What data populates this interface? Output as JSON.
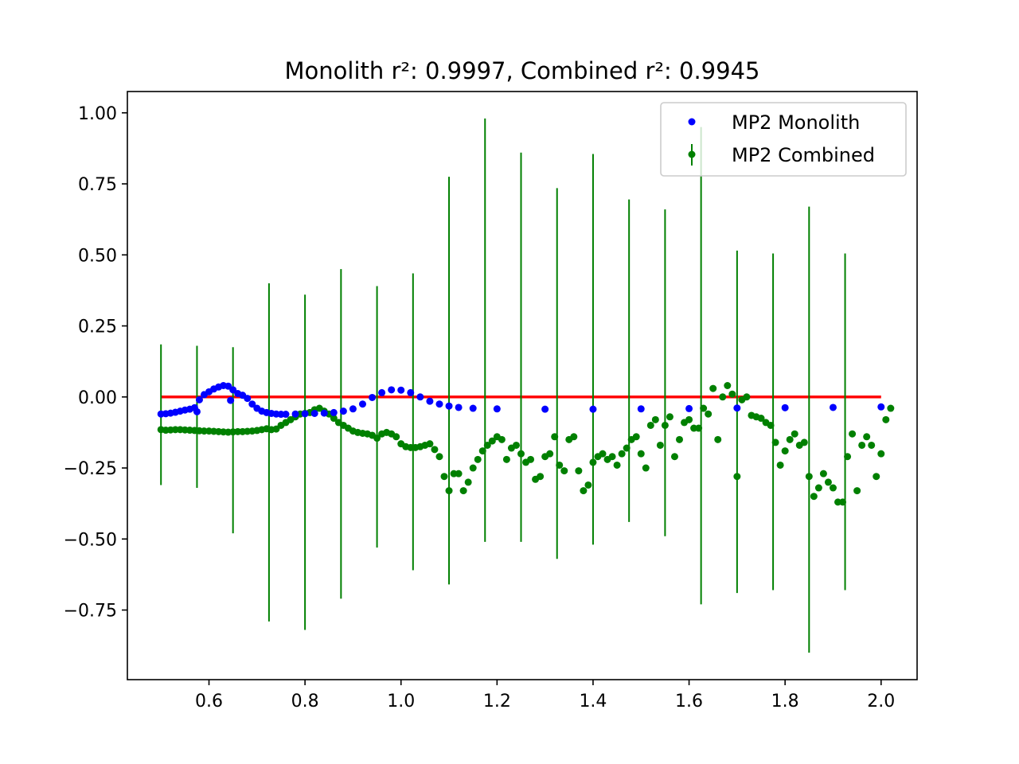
{
  "chart_data": {
    "type": "scatter",
    "title": "Monolith r²: 0.9997, Combined r²: 0.9945",
    "xlabel": "",
    "ylabel": "",
    "xlim": [
      0.43,
      2.075
    ],
    "ylim": [
      -0.995,
      1.075
    ],
    "xticks": [
      0.6,
      0.8,
      1.0,
      1.2,
      1.4,
      1.6,
      1.8,
      2.0
    ],
    "xtick_labels": [
      "0.6",
      "0.8",
      "1.0",
      "1.2",
      "1.4",
      "1.6",
      "1.8",
      "2.0"
    ],
    "yticks": [
      1.0,
      0.75,
      0.5,
      0.25,
      0.0,
      -0.25,
      -0.5,
      -0.75
    ],
    "ytick_labels": [
      "1.00",
      "0.75",
      "0.50",
      "0.25",
      "0.00",
      "−0.25",
      "−0.50",
      "−0.75"
    ],
    "grid": false,
    "legend_position": "top-right",
    "reference_line": {
      "x": [
        0.5,
        2.0
      ],
      "y": [
        0.0,
        0.0
      ],
      "color": "#ff0000"
    },
    "series": [
      {
        "name": "MP2 Monolith",
        "kind": "scatter",
        "color": "#0000ff",
        "points": [
          [
            0.5,
            -0.06
          ],
          [
            0.51,
            -0.059
          ],
          [
            0.52,
            -0.057
          ],
          [
            0.53,
            -0.054
          ],
          [
            0.54,
            -0.05
          ],
          [
            0.55,
            -0.046
          ],
          [
            0.56,
            -0.043
          ],
          [
            0.57,
            -0.038
          ],
          [
            0.575,
            -0.052
          ],
          [
            0.58,
            -0.01
          ],
          [
            0.59,
            0.008
          ],
          [
            0.6,
            0.018
          ],
          [
            0.61,
            0.028
          ],
          [
            0.62,
            0.035
          ],
          [
            0.63,
            0.04
          ],
          [
            0.64,
            0.038
          ],
          [
            0.645,
            -0.012
          ],
          [
            0.65,
            0.025
          ],
          [
            0.66,
            0.012
          ],
          [
            0.67,
            0.006
          ],
          [
            0.68,
            -0.005
          ],
          [
            0.69,
            -0.025
          ],
          [
            0.7,
            -0.04
          ],
          [
            0.71,
            -0.05
          ],
          [
            0.72,
            -0.055
          ],
          [
            0.73,
            -0.058
          ],
          [
            0.74,
            -0.06
          ],
          [
            0.75,
            -0.061
          ],
          [
            0.76,
            -0.061
          ],
          [
            0.78,
            -0.06
          ],
          [
            0.8,
            -0.059
          ],
          [
            0.82,
            -0.058
          ],
          [
            0.84,
            -0.057
          ],
          [
            0.86,
            -0.055
          ],
          [
            0.88,
            -0.05
          ],
          [
            0.9,
            -0.042
          ],
          [
            0.92,
            -0.025
          ],
          [
            0.94,
            -0.002
          ],
          [
            0.96,
            0.015
          ],
          [
            0.98,
            0.025
          ],
          [
            1.0,
            0.024
          ],
          [
            1.02,
            0.015
          ],
          [
            1.04,
            0.0
          ],
          [
            1.06,
            -0.015
          ],
          [
            1.08,
            -0.025
          ],
          [
            1.1,
            -0.032
          ],
          [
            1.12,
            -0.037
          ],
          [
            1.15,
            -0.04
          ],
          [
            1.2,
            -0.042
          ],
          [
            1.3,
            -0.043
          ],
          [
            1.4,
            -0.043
          ],
          [
            1.5,
            -0.042
          ],
          [
            1.6,
            -0.041
          ],
          [
            1.7,
            -0.039
          ],
          [
            1.8,
            -0.038
          ],
          [
            1.9,
            -0.037
          ],
          [
            2.0,
            -0.035
          ]
        ]
      },
      {
        "name": "MP2 Combined",
        "kind": "errorbar",
        "color": "#008000",
        "points": [
          [
            0.5,
            -0.115
          ],
          [
            0.51,
            -0.117
          ],
          [
            0.52,
            -0.116
          ],
          [
            0.53,
            -0.115
          ],
          [
            0.54,
            -0.115
          ],
          [
            0.55,
            -0.116
          ],
          [
            0.56,
            -0.117
          ],
          [
            0.57,
            -0.118
          ],
          [
            0.58,
            -0.119
          ],
          [
            0.59,
            -0.12
          ],
          [
            0.6,
            -0.12
          ],
          [
            0.61,
            -0.121
          ],
          [
            0.62,
            -0.122
          ],
          [
            0.63,
            -0.123
          ],
          [
            0.64,
            -0.124
          ],
          [
            0.65,
            -0.123
          ],
          [
            0.66,
            -0.122
          ],
          [
            0.67,
            -0.122
          ],
          [
            0.68,
            -0.121
          ],
          [
            0.69,
            -0.12
          ],
          [
            0.7,
            -0.118
          ],
          [
            0.71,
            -0.115
          ],
          [
            0.72,
            -0.112
          ],
          [
            0.73,
            -0.115
          ],
          [
            0.74,
            -0.113
          ],
          [
            0.75,
            -0.1
          ],
          [
            0.76,
            -0.09
          ],
          [
            0.77,
            -0.08
          ],
          [
            0.78,
            -0.07
          ],
          [
            0.79,
            -0.06
          ],
          [
            0.8,
            -0.058
          ],
          [
            0.81,
            -0.055
          ],
          [
            0.82,
            -0.045
          ],
          [
            0.83,
            -0.04
          ],
          [
            0.84,
            -0.05
          ],
          [
            0.85,
            -0.06
          ],
          [
            0.86,
            -0.075
          ],
          [
            0.87,
            -0.09
          ],
          [
            0.88,
            -0.1
          ],
          [
            0.89,
            -0.11
          ],
          [
            0.9,
            -0.12
          ],
          [
            0.91,
            -0.125
          ],
          [
            0.92,
            -0.128
          ],
          [
            0.93,
            -0.13
          ],
          [
            0.94,
            -0.135
          ],
          [
            0.95,
            -0.145
          ],
          [
            0.96,
            -0.13
          ],
          [
            0.97,
            -0.125
          ],
          [
            0.98,
            -0.13
          ],
          [
            0.99,
            -0.14
          ],
          [
            1.0,
            -0.165
          ],
          [
            1.01,
            -0.175
          ],
          [
            1.02,
            -0.178
          ],
          [
            1.03,
            -0.178
          ],
          [
            1.04,
            -0.175
          ],
          [
            1.05,
            -0.17
          ],
          [
            1.06,
            -0.165
          ],
          [
            1.07,
            -0.185
          ],
          [
            1.08,
            -0.21
          ],
          [
            1.09,
            -0.28
          ],
          [
            1.1,
            -0.33
          ],
          [
            1.11,
            -0.27
          ],
          [
            1.12,
            -0.27
          ],
          [
            1.13,
            -0.33
          ],
          [
            1.14,
            -0.3
          ],
          [
            1.15,
            -0.25
          ],
          [
            1.16,
            -0.22
          ],
          [
            1.17,
            -0.19
          ],
          [
            1.18,
            -0.17
          ],
          [
            1.19,
            -0.155
          ],
          [
            1.2,
            -0.14
          ],
          [
            1.21,
            -0.15
          ],
          [
            1.22,
            -0.22
          ],
          [
            1.23,
            -0.18
          ],
          [
            1.24,
            -0.17
          ],
          [
            1.25,
            -0.2
          ],
          [
            1.26,
            -0.23
          ],
          [
            1.27,
            -0.22
          ],
          [
            1.28,
            -0.29
          ],
          [
            1.29,
            -0.28
          ],
          [
            1.3,
            -0.21
          ],
          [
            1.31,
            -0.2
          ],
          [
            1.32,
            -0.14
          ],
          [
            1.33,
            -0.24
          ],
          [
            1.34,
            -0.26
          ],
          [
            1.35,
            -0.15
          ],
          [
            1.36,
            -0.14
          ],
          [
            1.37,
            -0.26
          ],
          [
            1.38,
            -0.33
          ],
          [
            1.39,
            -0.31
          ],
          [
            1.4,
            -0.23
          ],
          [
            1.41,
            -0.21
          ],
          [
            1.42,
            -0.2
          ],
          [
            1.43,
            -0.22
          ],
          [
            1.44,
            -0.21
          ],
          [
            1.45,
            -0.24
          ],
          [
            1.46,
            -0.2
          ],
          [
            1.47,
            -0.18
          ],
          [
            1.48,
            -0.15
          ],
          [
            1.49,
            -0.14
          ],
          [
            1.5,
            -0.2
          ],
          [
            1.51,
            -0.25
          ],
          [
            1.52,
            -0.1
          ],
          [
            1.53,
            -0.08
          ],
          [
            1.54,
            -0.17
          ],
          [
            1.55,
            -0.1
          ],
          [
            1.56,
            -0.07
          ],
          [
            1.57,
            -0.21
          ],
          [
            1.58,
            -0.15
          ],
          [
            1.59,
            -0.09
          ],
          [
            1.6,
            -0.08
          ],
          [
            1.61,
            -0.11
          ],
          [
            1.62,
            -0.11
          ],
          [
            1.63,
            -0.04
          ],
          [
            1.64,
            -0.06
          ],
          [
            1.65,
            0.03
          ],
          [
            1.66,
            -0.15
          ],
          [
            1.67,
            0.0
          ],
          [
            1.68,
            0.04
          ],
          [
            1.69,
            0.01
          ],
          [
            1.7,
            -0.28
          ],
          [
            1.71,
            -0.01
          ],
          [
            1.72,
            0.0
          ],
          [
            1.73,
            -0.065
          ],
          [
            1.74,
            -0.07
          ],
          [
            1.75,
            -0.075
          ],
          [
            1.76,
            -0.09
          ],
          [
            1.77,
            -0.1
          ],
          [
            1.78,
            -0.16
          ],
          [
            1.79,
            -0.24
          ],
          [
            1.8,
            -0.19
          ],
          [
            1.81,
            -0.15
          ],
          [
            1.82,
            -0.13
          ],
          [
            1.83,
            -0.17
          ],
          [
            1.84,
            -0.16
          ],
          [
            1.85,
            -0.28
          ],
          [
            1.86,
            -0.35
          ],
          [
            1.87,
            -0.32
          ],
          [
            1.88,
            -0.27
          ],
          [
            1.89,
            -0.3
          ],
          [
            1.9,
            -0.32
          ],
          [
            1.91,
            -0.37
          ],
          [
            1.92,
            -0.37
          ],
          [
            1.93,
            -0.21
          ],
          [
            1.94,
            -0.13
          ],
          [
            1.95,
            -0.33
          ],
          [
            1.96,
            -0.17
          ],
          [
            1.97,
            -0.14
          ],
          [
            1.98,
            -0.17
          ],
          [
            1.99,
            -0.28
          ],
          [
            2.0,
            -0.2
          ],
          [
            2.01,
            -0.08
          ],
          [
            2.02,
            -0.04
          ]
        ],
        "error_bars": [
          {
            "x": 0.5,
            "low": -0.31,
            "high": 0.185
          },
          {
            "x": 0.575,
            "low": -0.32,
            "high": 0.18
          },
          {
            "x": 0.65,
            "low": -0.48,
            "high": 0.175
          },
          {
            "x": 0.725,
            "low": -0.79,
            "high": 0.4
          },
          {
            "x": 0.8,
            "low": -0.82,
            "high": 0.36
          },
          {
            "x": 0.875,
            "low": -0.71,
            "high": 0.45
          },
          {
            "x": 0.95,
            "low": -0.53,
            "high": 0.39
          },
          {
            "x": 1.025,
            "low": -0.61,
            "high": 0.435
          },
          {
            "x": 1.1,
            "low": -0.66,
            "high": 0.775
          },
          {
            "x": 1.175,
            "low": -0.51,
            "high": 0.98
          },
          {
            "x": 1.25,
            "low": -0.51,
            "high": 0.86
          },
          {
            "x": 1.325,
            "low": -0.57,
            "high": 0.735
          },
          {
            "x": 1.4,
            "low": -0.52,
            "high": 0.855
          },
          {
            "x": 1.475,
            "low": -0.44,
            "high": 0.695
          },
          {
            "x": 1.55,
            "low": -0.49,
            "high": 0.66
          },
          {
            "x": 1.625,
            "low": -0.73,
            "high": 0.95
          },
          {
            "x": 1.7,
            "low": -0.69,
            "high": 0.515
          },
          {
            "x": 1.775,
            "low": -0.68,
            "high": 0.505
          },
          {
            "x": 1.85,
            "low": -0.9,
            "high": 0.67
          },
          {
            "x": 1.925,
            "low": -0.68,
            "high": 0.505
          }
        ]
      }
    ]
  }
}
